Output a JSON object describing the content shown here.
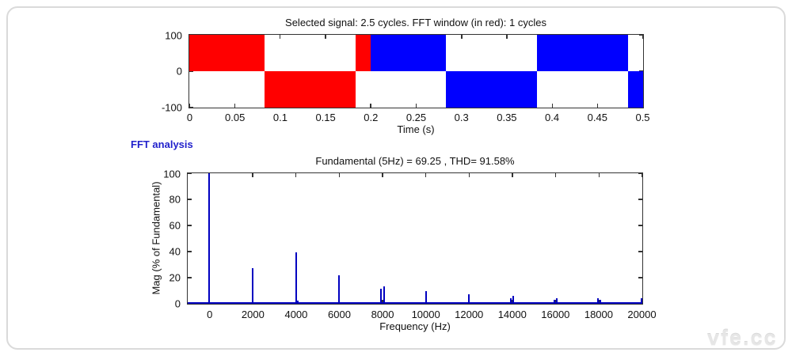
{
  "fft_label": "FFT analysis",
  "watermark": "vfe.cc",
  "colors": {
    "fft_window_red": "#ff0000",
    "signal_blue": "#0000ff",
    "stem_blue": "#0000c0",
    "axis": "#333333",
    "fft_label_blue": "#2222cc",
    "watermark_gray": "#e6e6e6"
  },
  "chart_data": [
    {
      "type": "area",
      "title": "Selected signal: 2.5 cycles. FFT window (in red): 1 cycles",
      "xlabel": "Time (s)",
      "ylabel": "",
      "xlim": [
        0,
        0.5
      ],
      "ylim": [
        -100,
        100
      ],
      "xtick_values": [
        0,
        0.05,
        0.1,
        0.15,
        0.2,
        0.25,
        0.3,
        0.35,
        0.4,
        0.45,
        0.5
      ],
      "xtick_labels": [
        "0",
        "0.05",
        "0.1",
        "0.15",
        "0.2",
        "0.25",
        "0.3",
        "0.35",
        "0.4",
        "0.45",
        "0.5"
      ],
      "ytick_values": [
        100,
        0,
        -100
      ],
      "ytick_labels": [
        "100",
        "0",
        "-100"
      ],
      "signal_description": "5 Hz square wave, amplitude 100, 2.5 cycles; first cycle (0 to 0.2 s) is the FFT window drawn in red, remainder in blue",
      "segments": [
        {
          "t0": 0.0,
          "t1": 0.083,
          "level": 100,
          "color": "fft_window_red"
        },
        {
          "t0": 0.083,
          "t1": 0.183,
          "level": -100,
          "color": "fft_window_red"
        },
        {
          "t0": 0.183,
          "t1": 0.2,
          "level": 100,
          "color": "fft_window_red"
        },
        {
          "t0": 0.2,
          "t1": 0.283,
          "level": 100,
          "color": "signal_blue"
        },
        {
          "t0": 0.283,
          "t1": 0.383,
          "level": -100,
          "color": "signal_blue"
        },
        {
          "t0": 0.383,
          "t1": 0.483,
          "level": 100,
          "color": "signal_blue"
        },
        {
          "t0": 0.483,
          "t1": 0.5,
          "level": -100,
          "color": "signal_blue"
        }
      ]
    },
    {
      "type": "stem",
      "title": "Fundamental (5Hz) = 69.25 , THD= 91.58%",
      "xlabel": "Frequency (Hz)",
      "ylabel": "Mag (% of Fundamental)",
      "fundamental_hz": 5,
      "fundamental_value": 69.25,
      "thd_percent": 91.58,
      "xlim": [
        -1000,
        20000
      ],
      "ylim": [
        0,
        100
      ],
      "xtick_values": [
        0,
        2000,
        4000,
        6000,
        8000,
        10000,
        12000,
        14000,
        16000,
        18000,
        20000
      ],
      "xtick_labels": [
        "0",
        "2000",
        "4000",
        "6000",
        "8000",
        "10000",
        "12000",
        "14000",
        "16000",
        "18000",
        "20000"
      ],
      "ytick_values": [
        0,
        20,
        40,
        60,
        80,
        100
      ],
      "ytick_labels": [
        "0",
        "20",
        "40",
        "60",
        "80",
        "100"
      ],
      "stems": [
        {
          "f": 5,
          "mag": 100
        },
        {
          "f": 1995,
          "mag": 27
        },
        {
          "f": 3995,
          "mag": 39.5
        },
        {
          "f": 4070,
          "mag": 2.5
        },
        {
          "f": 5995,
          "mag": 22
        },
        {
          "f": 7930,
          "mag": 11.5
        },
        {
          "f": 8060,
          "mag": 13.5
        },
        {
          "f": 9995,
          "mag": 10
        },
        {
          "f": 11995,
          "mag": 7
        },
        {
          "f": 13920,
          "mag": 4
        },
        {
          "f": 14050,
          "mag": 6
        },
        {
          "f": 15930,
          "mag": 3
        },
        {
          "f": 16050,
          "mag": 4.5
        },
        {
          "f": 17940,
          "mag": 4.5
        },
        {
          "f": 18070,
          "mag": 3
        },
        {
          "f": 19950,
          "mag": 4
        }
      ]
    }
  ]
}
